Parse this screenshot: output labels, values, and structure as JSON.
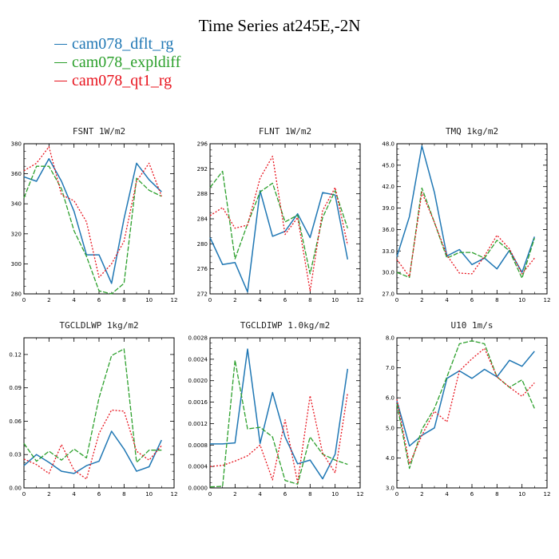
{
  "title": "Time Series at245E,-2N",
  "legend": [
    {
      "name": "cam078_dflt_rg",
      "color": "#1f77b4"
    },
    {
      "name": "cam078_expldiff",
      "color": "#2ca02c"
    },
    {
      "name": "cam078_qt1_rg",
      "color": "#e8141e"
    }
  ],
  "chart_data": [
    {
      "type": "line",
      "title": "FSNT   1W/m2",
      "x": [
        0,
        1,
        2,
        3,
        4,
        5,
        6,
        7,
        8,
        9,
        10,
        11
      ],
      "xlim": [
        0,
        12
      ],
      "xticks": [
        "0",
        "2",
        "4",
        "6",
        "8",
        "10",
        "12"
      ],
      "ylim": [
        280,
        380
      ],
      "yticks": [
        "280",
        "300",
        "320",
        "340",
        "360",
        "380"
      ],
      "series": [
        {
          "name": "cam078_dflt_rg",
          "values": [
            358,
            355,
            370,
            355,
            335,
            306,
            306,
            287,
            330,
            367,
            356,
            348
          ]
        },
        {
          "name": "cam078_expldiff",
          "values": [
            344,
            365,
            365,
            350,
            322,
            305,
            282,
            280,
            287,
            357,
            349,
            345
          ]
        },
        {
          "name": "cam078_qt1_rg",
          "values": [
            362,
            367,
            378,
            346,
            342,
            328,
            291,
            300,
            315,
            355,
            367,
            345
          ]
        }
      ]
    },
    {
      "type": "line",
      "title": "FLNT   1W/m2",
      "x": [
        0,
        1,
        2,
        3,
        4,
        5,
        6,
        7,
        8,
        9,
        10,
        11
      ],
      "xlim": [
        0,
        12
      ],
      "xticks": [
        "0",
        "2",
        "4",
        "6",
        "8",
        "10",
        "12"
      ],
      "ylim": [
        272,
        296
      ],
      "yticks": [
        "272",
        "276",
        "280",
        "284",
        "288",
        "292",
        "296"
      ],
      "series": [
        {
          "name": "cam078_dflt_rg",
          "values": [
            281,
            276.7,
            277,
            272.3,
            288.5,
            281.2,
            282,
            284.8,
            281,
            288.2,
            287.8,
            277.5
          ]
        },
        {
          "name": "cam078_expldiff",
          "values": [
            289,
            291.6,
            277.6,
            283.2,
            288.3,
            289.7,
            283.5,
            284.6,
            275.2,
            284.2,
            288.5,
            282.5
          ]
        },
        {
          "name": "cam078_qt1_rg",
          "values": [
            284.5,
            285.8,
            282.5,
            283,
            290.5,
            294,
            281.5,
            284.2,
            272.5,
            285.3,
            289,
            279.8
          ]
        }
      ]
    },
    {
      "type": "line",
      "title": "TMQ   1kg/m2",
      "x": [
        0,
        1,
        2,
        3,
        4,
        5,
        6,
        7,
        8,
        9,
        10,
        11
      ],
      "xlim": [
        0,
        12
      ],
      "xticks": [
        "0",
        "2",
        "4",
        "6",
        "8",
        "10",
        "12"
      ],
      "ylim": [
        27,
        48
      ],
      "yticks": [
        "27.0",
        "30.0",
        "33.0",
        "36.0",
        "39.0",
        "42.0",
        "45.0",
        "48.0"
      ],
      "series": [
        {
          "name": "cam078_dflt_rg",
          "values": [
            32.2,
            37.8,
            47.7,
            41.2,
            32.3,
            33.2,
            31.1,
            32,
            30.5,
            33.1,
            30,
            35
          ]
        },
        {
          "name": "cam078_expldiff",
          "values": [
            30,
            29.3,
            41.8,
            37,
            32,
            32.8,
            32.8,
            32,
            34.5,
            33,
            29.2,
            34.8
          ]
        },
        {
          "name": "cam078_qt1_rg",
          "values": [
            31.8,
            29.4,
            41.2,
            37,
            32.4,
            29.9,
            29.8,
            32.3,
            35.2,
            33.3,
            29.8,
            32
          ]
        }
      ]
    },
    {
      "type": "line",
      "title": "TGCLDLWP   1kg/m2",
      "x": [
        0,
        1,
        2,
        3,
        4,
        5,
        6,
        7,
        8,
        9,
        10,
        11
      ],
      "xlim": [
        0,
        12
      ],
      "xticks": [
        "0",
        "2",
        "4",
        "6",
        "8",
        "10",
        "12"
      ],
      "ylim": [
        0,
        0.135
      ],
      "yticks": [
        "0.00",
        "0.03",
        "0.06",
        "0.09",
        "0.12"
      ],
      "series": [
        {
          "name": "cam078_dflt_rg",
          "values": [
            0.02,
            0.03,
            0.023,
            0.015,
            0.013,
            0.02,
            0.024,
            0.051,
            0.035,
            0.015,
            0.019,
            0.043
          ]
        },
        {
          "name": "cam078_expldiff",
          "values": [
            0.04,
            0.024,
            0.033,
            0.025,
            0.035,
            0.027,
            0.081,
            0.119,
            0.125,
            0.023,
            0.034,
            0.034
          ]
        },
        {
          "name": "cam078_qt1_rg",
          "values": [
            0.026,
            0.021,
            0.013,
            0.039,
            0.016,
            0.008,
            0.049,
            0.07,
            0.069,
            0.033,
            0.025,
            0.038
          ]
        }
      ]
    },
    {
      "type": "line",
      "title": "TGCLDIWP   1.0kg/m2",
      "x": [
        0,
        1,
        2,
        3,
        4,
        5,
        6,
        7,
        8,
        9,
        10,
        11
      ],
      "xlim": [
        0,
        12
      ],
      "xticks": [
        "0",
        "2",
        "4",
        "6",
        "8",
        "10",
        "12"
      ],
      "ylim": [
        0,
        0.0028
      ],
      "yticks": [
        "0.0000",
        "0.0004",
        "0.0008",
        "0.0012",
        "0.0016",
        "0.0020",
        "0.0024",
        "0.0028"
      ],
      "series": [
        {
          "name": "cam078_dflt_rg",
          "values": [
            0.00082,
            0.00082,
            0.00084,
            0.00259,
            0.00083,
            0.00178,
            0.00095,
            0.00045,
            0.00052,
            0.00017,
            0.00063,
            0.00222
          ]
        },
        {
          "name": "cam078_expldiff",
          "values": [
            2e-05,
            3e-05,
            0.00238,
            0.0011,
            0.00113,
            0.00095,
            0.00014,
            7e-05,
            0.00095,
            0.00063,
            0.00052,
            0.00044
          ]
        },
        {
          "name": "cam078_qt1_rg",
          "values": [
            0.0004,
            0.00042,
            0.0005,
            0.0006,
            0.0008,
            0.00015,
            0.00127,
            0.0001,
            0.00172,
            0.00065,
            0.00028,
            0.00177
          ]
        }
      ]
    },
    {
      "type": "line",
      "title": "U10   1m/s",
      "x": [
        0,
        1,
        2,
        3,
        4,
        5,
        6,
        7,
        8,
        9,
        10,
        11
      ],
      "xlim": [
        0,
        12
      ],
      "xticks": [
        "0",
        "2",
        "4",
        "6",
        "8",
        "10",
        "12"
      ],
      "ylim": [
        3,
        8
      ],
      "yticks": [
        "3.0",
        "4.0",
        "5.0",
        "6.0",
        "7.0",
        "8.0"
      ],
      "series": [
        {
          "name": "cam078_dflt_rg",
          "values": [
            5.9,
            4.4,
            4.75,
            5.0,
            6.65,
            6.9,
            6.65,
            6.95,
            6.7,
            7.25,
            7.05,
            7.55
          ]
        },
        {
          "name": "cam078_expldiff",
          "values": [
            5.8,
            3.65,
            4.95,
            5.65,
            6.7,
            7.8,
            7.9,
            7.8,
            6.7,
            6.35,
            6.6,
            5.65
          ]
        },
        {
          "name": "cam078_qt1_rg",
          "values": [
            5.95,
            3.8,
            4.75,
            5.55,
            5.2,
            6.9,
            7.3,
            7.65,
            6.7,
            6.35,
            6.05,
            6.5
          ]
        }
      ]
    }
  ]
}
